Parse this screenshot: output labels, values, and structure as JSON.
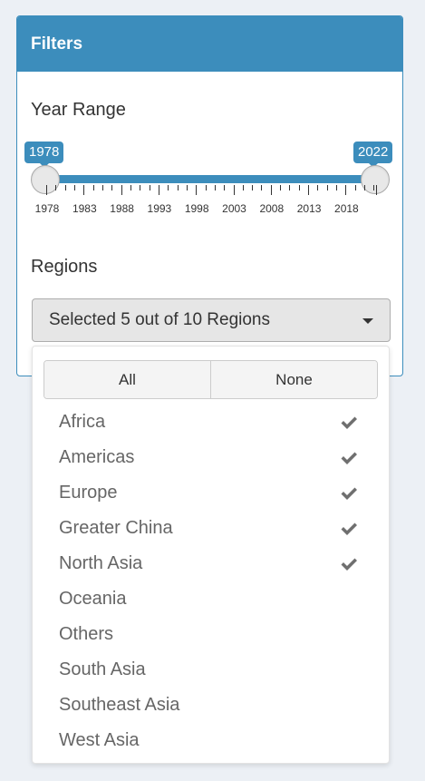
{
  "panel": {
    "title": "Filters"
  },
  "year_range": {
    "label": "Year Range",
    "min_label": "1978",
    "max_label": "2022",
    "ticks": [
      "1978",
      "1983",
      "1988",
      "1993",
      "1998",
      "2003",
      "2008",
      "2013",
      "2018"
    ]
  },
  "regions": {
    "label": "Regions",
    "selected_text": "Selected 5 out of 10 Regions",
    "all_label": "All",
    "none_label": "None",
    "options": [
      {
        "label": "Africa",
        "checked": true
      },
      {
        "label": "Americas",
        "checked": true
      },
      {
        "label": "Europe",
        "checked": true
      },
      {
        "label": "Greater China",
        "checked": true
      },
      {
        "label": "North Asia",
        "checked": true
      },
      {
        "label": "Oceania",
        "checked": false
      },
      {
        "label": "Others",
        "checked": false
      },
      {
        "label": "South Asia",
        "checked": false
      },
      {
        "label": "Southeast Asia",
        "checked": false
      },
      {
        "label": "West Asia",
        "checked": false
      }
    ]
  },
  "colors": {
    "accent": "#3c8dbc",
    "check": "#6f6f6f"
  },
  "icons": {
    "dropdown": "caret-down-icon",
    "check": "check-icon"
  }
}
